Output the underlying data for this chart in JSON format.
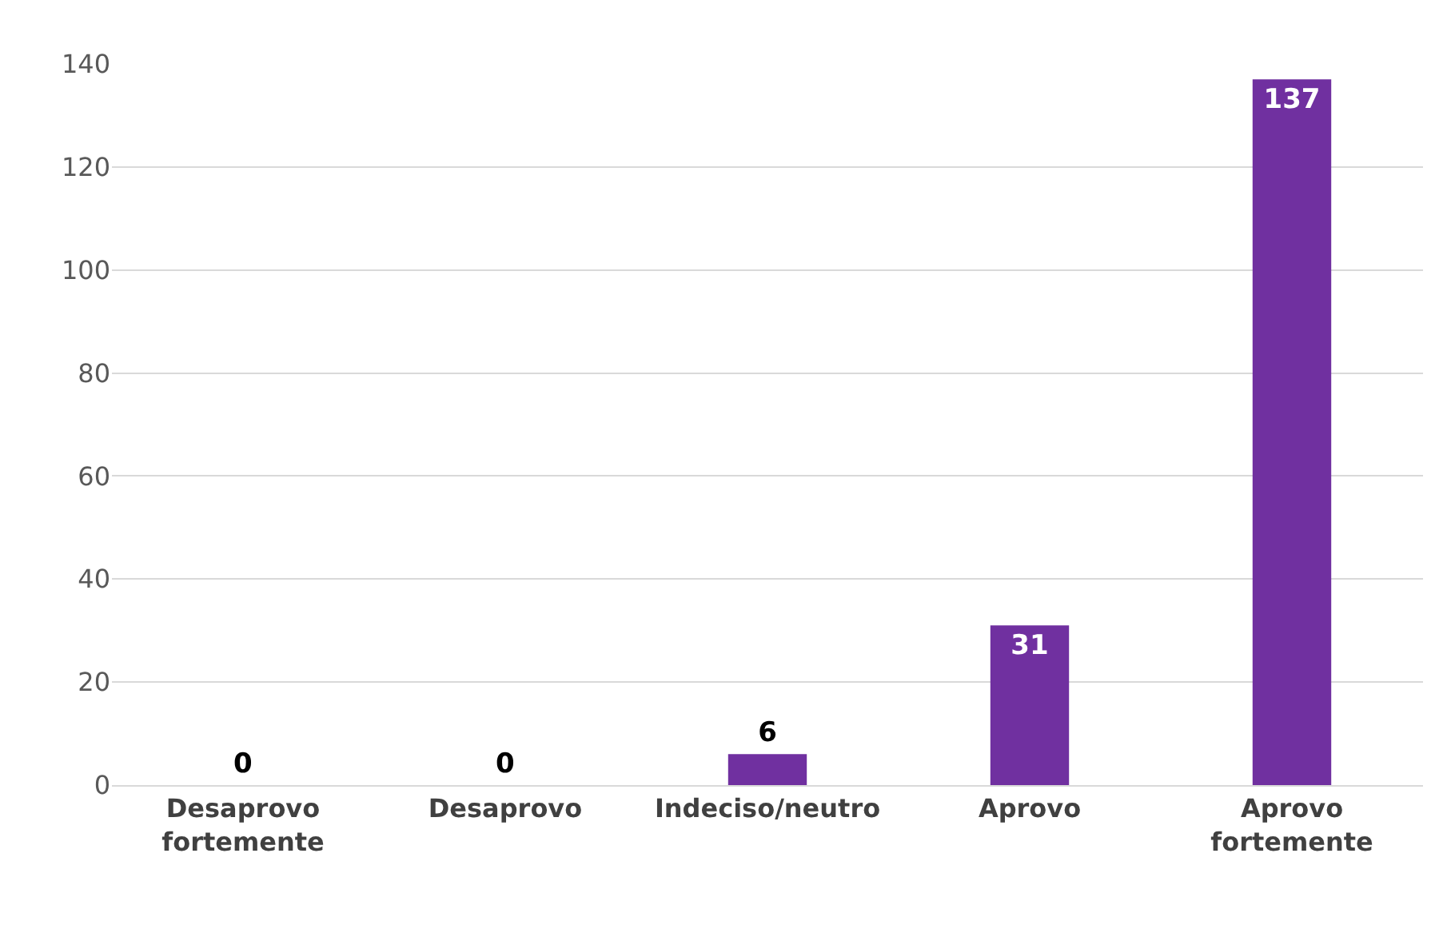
{
  "chart_data": {
    "type": "bar",
    "categories": [
      "Desaprovo fortemente",
      "Desaprovo",
      "Indeciso/neutro",
      "Aprovo",
      "Aprovo fortemente"
    ],
    "values": [
      0,
      0,
      6,
      31,
      137
    ],
    "color": "#7030a0",
    "ylim": [
      0,
      140
    ],
    "yticks": [
      0,
      20,
      40,
      60,
      80,
      100,
      120,
      140
    ],
    "grid": "y",
    "data_labels": true
  }
}
